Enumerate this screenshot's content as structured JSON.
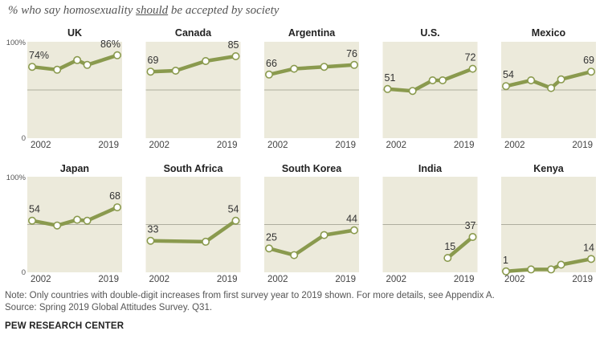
{
  "title": {
    "before": "% who say homosexuality ",
    "underlined": "should",
    "after": " be accepted by society"
  },
  "note": "Note: Only countries with double-digit increases from first survey year to 2019 shown. For more details, see Appendix A.",
  "source": "Source: Spring 2019 Global Attitudes Survey. Q31.",
  "organization": "PEW RESEARCH CENTER",
  "colors": {
    "line": "#8a9a4e",
    "panel": "#eceadb",
    "marker_fill": "#ffffff",
    "gridline": "#9a9a8a"
  },
  "chart_data": {
    "type": "line",
    "x_range": [
      2002,
      2019
    ],
    "ylim": [
      0,
      100
    ],
    "y_axis_labels": [
      "100%",
      "0"
    ],
    "x_tick_labels": [
      "2002",
      "2019"
    ],
    "grid": "horizontal line at 50",
    "panels": [
      {
        "country": "UK",
        "points": [
          {
            "x": 2002,
            "y": 74
          },
          {
            "x": 2007,
            "y": 71
          },
          {
            "x": 2011,
            "y": 81
          },
          {
            "x": 2013,
            "y": 76
          },
          {
            "x": 2019,
            "y": 86
          }
        ],
        "first_label": "74%",
        "last_label": "86%"
      },
      {
        "country": "Canada",
        "points": [
          {
            "x": 2002,
            "y": 69
          },
          {
            "x": 2007,
            "y": 70
          },
          {
            "x": 2013,
            "y": 80
          },
          {
            "x": 2019,
            "y": 85
          }
        ],
        "first_label": "69",
        "last_label": "85"
      },
      {
        "country": "Argentina",
        "points": [
          {
            "x": 2002,
            "y": 66
          },
          {
            "x": 2007,
            "y": 72
          },
          {
            "x": 2013,
            "y": 74
          },
          {
            "x": 2019,
            "y": 76
          }
        ],
        "first_label": "66",
        "last_label": "76"
      },
      {
        "country": "U.S.",
        "points": [
          {
            "x": 2002,
            "y": 51
          },
          {
            "x": 2007,
            "y": 49
          },
          {
            "x": 2011,
            "y": 60
          },
          {
            "x": 2013,
            "y": 60
          },
          {
            "x": 2019,
            "y": 72
          }
        ],
        "first_label": "51",
        "last_label": "72"
      },
      {
        "country": "Mexico",
        "points": [
          {
            "x": 2002,
            "y": 54
          },
          {
            "x": 2007,
            "y": 60
          },
          {
            "x": 2011,
            "y": 52
          },
          {
            "x": 2013,
            "y": 61
          },
          {
            "x": 2019,
            "y": 69
          }
        ],
        "first_label": "54",
        "last_label": "69"
      },
      {
        "country": "Japan",
        "points": [
          {
            "x": 2002,
            "y": 54
          },
          {
            "x": 2007,
            "y": 49
          },
          {
            "x": 2011,
            "y": 55
          },
          {
            "x": 2013,
            "y": 54
          },
          {
            "x": 2019,
            "y": 68
          }
        ],
        "first_label": "54",
        "last_label": "68"
      },
      {
        "country": "South Africa",
        "points": [
          {
            "x": 2002,
            "y": 33
          },
          {
            "x": 2013,
            "y": 32
          },
          {
            "x": 2019,
            "y": 54
          }
        ],
        "first_label": "33",
        "last_label": "54"
      },
      {
        "country": "South Korea",
        "points": [
          {
            "x": 2002,
            "y": 25
          },
          {
            "x": 2007,
            "y": 18
          },
          {
            "x": 2013,
            "y": 39
          },
          {
            "x": 2019,
            "y": 44
          }
        ],
        "first_label": "25",
        "last_label": "44"
      },
      {
        "country": "India",
        "points": [
          {
            "x": 2014,
            "y": 15
          },
          {
            "x": 2019,
            "y": 37
          }
        ],
        "first_label": "15",
        "last_label": "37"
      },
      {
        "country": "Kenya",
        "points": [
          {
            "x": 2002,
            "y": 1
          },
          {
            "x": 2007,
            "y": 3
          },
          {
            "x": 2011,
            "y": 3
          },
          {
            "x": 2013,
            "y": 8
          },
          {
            "x": 2019,
            "y": 14
          }
        ],
        "first_label": "1",
        "last_label": "14"
      }
    ]
  }
}
